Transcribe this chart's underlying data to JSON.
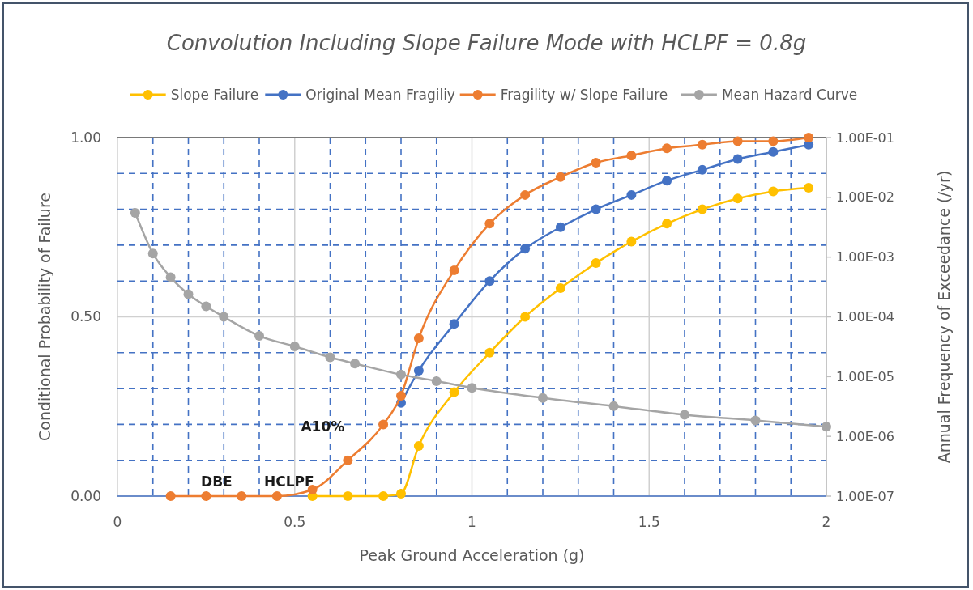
{
  "chart_data": {
    "type": "line",
    "title": "Convolution Including Slope Failure Mode with HCLPF = 0.8g",
    "xlabel": "Peak Ground Acceleration (g)",
    "ylabel": "Conditional Probability of Failure",
    "y2label": "Annual Frequency of Exceedance  (/yr)",
    "xlim": [
      0,
      2
    ],
    "ylim": [
      0,
      1
    ],
    "y2lim": [
      1e-07,
      0.1
    ],
    "log": "y2",
    "grid": true,
    "legend": "top",
    "marker": "circle",
    "line_style": "solid",
    "xticks": [
      0,
      {
        "value": 0.1,
        "label": null
      },
      {
        "value": 0.2,
        "label": null
      },
      {
        "value": 0.3,
        "label": null
      },
      {
        "value": 0.4,
        "label": null
      },
      0.5,
      {
        "value": 0.6,
        "label": null
      },
      {
        "value": 0.7,
        "label": null
      },
      {
        "value": 0.8,
        "label": null
      },
      {
        "value": 0.9,
        "label": null
      },
      1,
      {
        "value": 1.1,
        "label": null
      },
      {
        "value": 1.2,
        "label": null
      },
      {
        "value": 1.3,
        "label": null
      },
      {
        "value": 1.4,
        "label": null
      },
      1.5,
      {
        "value": 1.6,
        "label": null
      },
      {
        "value": 1.7,
        "label": null
      },
      {
        "value": 1.8,
        "label": null
      },
      {
        "value": 1.9,
        "label": null
      },
      2
    ],
    "yticks": [
      {
        "value": 0,
        "label": "0.00"
      },
      {
        "value": 0.1,
        "label": null
      },
      {
        "value": 0.2,
        "label": null
      },
      {
        "value": 0.3,
        "label": null
      },
      {
        "value": 0.4,
        "label": null
      },
      {
        "value": 0.5,
        "label": "0.50"
      },
      {
        "value": 0.6,
        "label": null
      },
      {
        "value": 0.7,
        "label": null
      },
      {
        "value": 0.8,
        "label": null
      },
      {
        "value": 0.9,
        "label": null
      },
      {
        "value": 1,
        "label": "1.00"
      }
    ],
    "y2ticks": [
      {
        "value": 1e-07,
        "label": "1.00E-07"
      },
      {
        "value": 1e-06,
        "label": "1.00E-06"
      },
      {
        "value": 1e-05,
        "label": "1.00E-05"
      },
      {
        "value": 0.0001,
        "label": "1.00E-04"
      },
      {
        "value": 0.001,
        "label": "1.00E-03"
      },
      {
        "value": 0.01,
        "label": "1.00E-02"
      },
      {
        "value": 0.1,
        "label": "1.00E-01"
      }
    ],
    "series": [
      {
        "name": "Slope Failure",
        "color": "#ffc000",
        "x": [
          0.55,
          0.65,
          0.75,
          0.8,
          0.85,
          0.95,
          1.05,
          1.15,
          1.25,
          1.35,
          1.45,
          1.55,
          1.65,
          1.75,
          1.85,
          1.95
        ],
        "values": [
          0,
          0,
          0,
          0.007,
          0.14,
          0.29,
          0.4,
          0.5,
          0.58,
          0.65,
          0.71,
          0.76,
          0.8,
          0.83,
          0.85,
          0.86
        ]
      },
      {
        "name": "Original Mean Fragiliy",
        "color": "#4472c4",
        "x": [
          0.8,
          0.85,
          0.95,
          1.05,
          1.15,
          1.25,
          1.35,
          1.45,
          1.55,
          1.65,
          1.75,
          1.85,
          1.95
        ],
        "values": [
          0.26,
          0.35,
          0.48,
          0.6,
          0.69,
          0.75,
          0.8,
          0.84,
          0.88,
          0.91,
          0.94,
          0.96,
          0.98
        ]
      },
      {
        "name": "Fragility w/ Slope Failure",
        "color": "#ed7d31",
        "x": [
          0.15,
          0.25,
          0.35,
          0.45,
          0.55,
          0.65,
          0.75,
          0.8,
          0.85,
          0.95,
          1.05,
          1.15,
          1.25,
          1.35,
          1.45,
          1.55,
          1.65,
          1.75,
          1.85,
          1.95
        ],
        "values": [
          0,
          0,
          0,
          0,
          0.018,
          0.1,
          0.2,
          0.28,
          0.44,
          0.63,
          0.76,
          0.84,
          0.89,
          0.93,
          0.95,
          0.97,
          0.98,
          0.99,
          0.99,
          1.0
        ]
      },
      {
        "name": "Mean Hazard Curve",
        "color": "#a5a5a5",
        "axis": "y2",
        "x": [
          0.05,
          0.1,
          0.15,
          0.2,
          0.25,
          0.3,
          0.4,
          0.5,
          0.6,
          0.67,
          0.8,
          0.9,
          1,
          1.2,
          1.4,
          1.6,
          1.8,
          2
        ],
        "values": [
          0.0055,
          0.00115,
          0.00046,
          0.00024,
          0.00015,
          0.0001,
          4.8e-05,
          3.2e-05,
          2.1e-05,
          1.65e-05,
          1.08e-05,
          8.4e-06,
          6.5e-06,
          4.4e-06,
          3.2e-06,
          2.3e-06,
          1.85e-06,
          1.45e-06
        ]
      }
    ],
    "annotations": [
      {
        "text": "DBE",
        "x": 0.25,
        "y": 0
      },
      {
        "text": "HCLPF",
        "x": 0.45,
        "y": 0
      },
      {
        "text": "A10%",
        "x": 0.65,
        "y": 0.1
      }
    ]
  }
}
